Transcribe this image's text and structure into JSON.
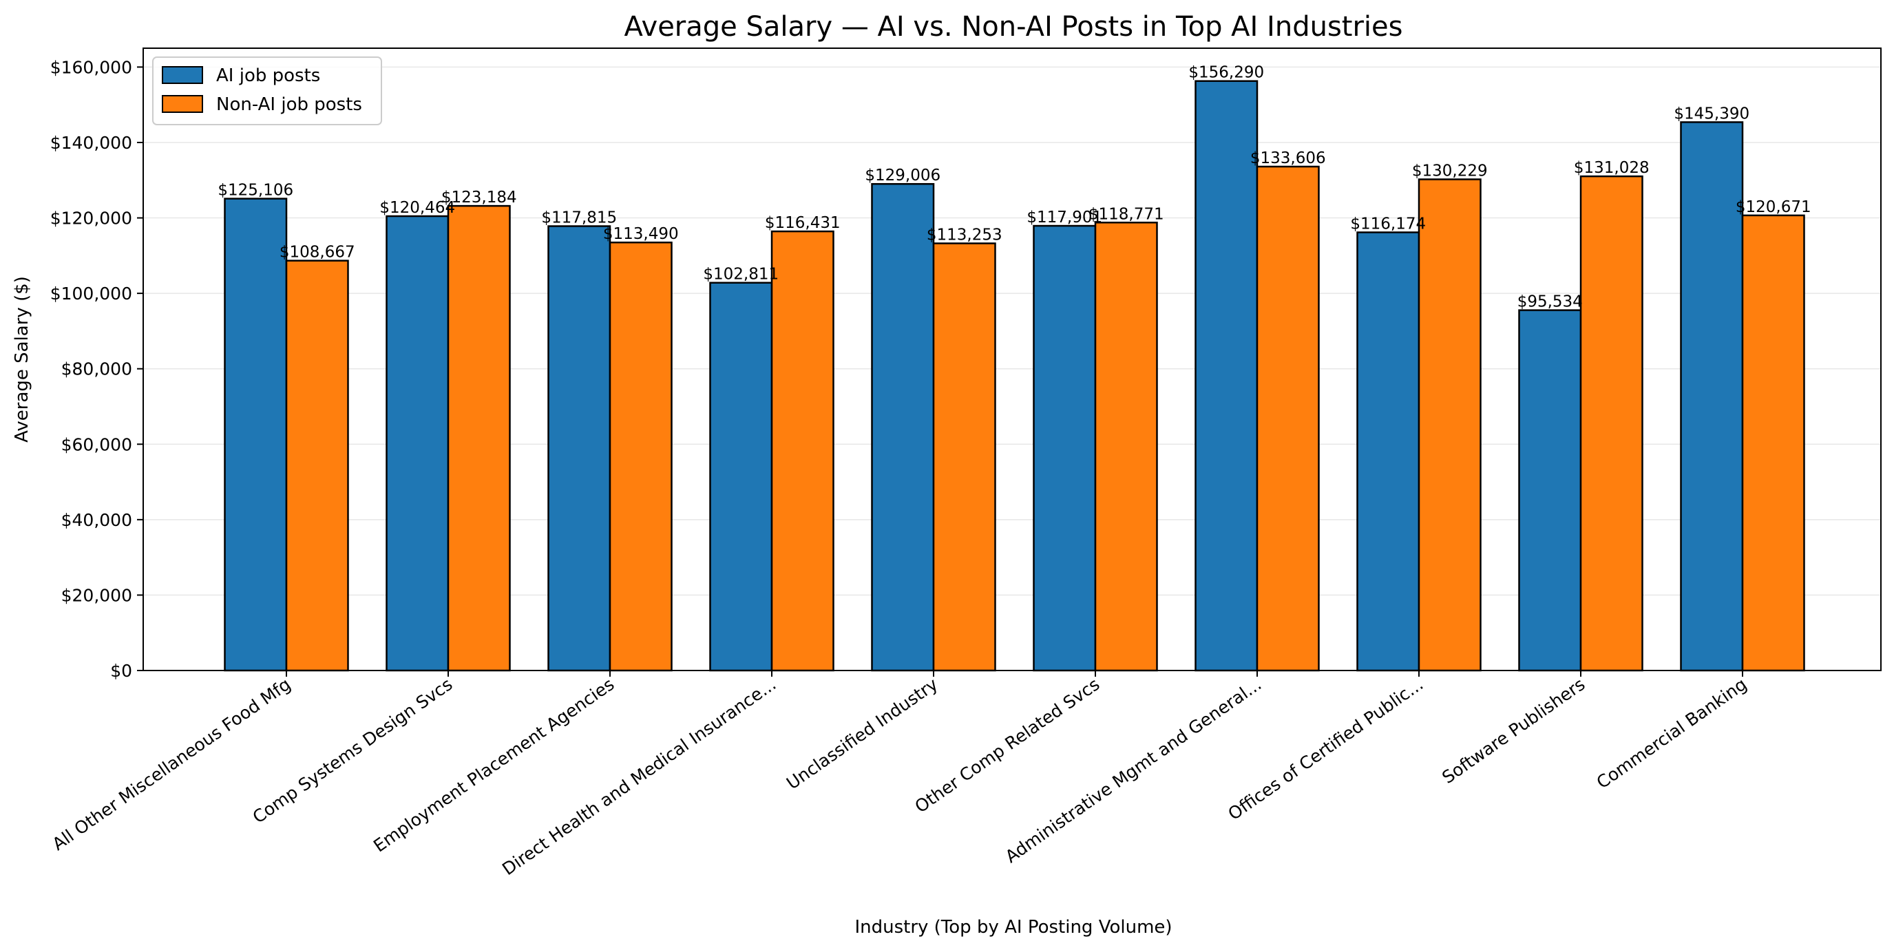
{
  "chart_data": {
    "type": "bar",
    "title": "Average Salary — AI vs. Non-AI Posts in Top AI Industries",
    "xlabel": "Industry (Top by AI Posting Volume)",
    "ylabel": "Average Salary ($)",
    "ylim": [
      0,
      165000
    ],
    "yticks": [
      0,
      20000,
      40000,
      60000,
      80000,
      100000,
      120000,
      140000,
      160000
    ],
    "ytick_labels": [
      "$0",
      "$20,000",
      "$40,000",
      "$60,000",
      "$80,000",
      "$100,000",
      "$120,000",
      "$140,000",
      "$160,000"
    ],
    "grid": "y",
    "legend_position": "top-left",
    "categories": [
      "All Other Miscellaneous Food Mfg",
      "Comp Systems Design Svcs",
      "Employment Placement Agencies",
      "Direct Health and Medical Insurance...",
      "Unclassified Industry",
      "Other Comp Related Svcs",
      "Administrative Mgmt and General...",
      "Offices of Certified Public...",
      "Software Publishers",
      "Commercial Banking"
    ],
    "series": [
      {
        "name": "AI job posts",
        "color": "#1f77b4",
        "values": [
          125106,
          120464,
          117815,
          102811,
          129006,
          117901,
          156290,
          116174,
          95534,
          145390
        ],
        "labels": [
          "$125,106",
          "$120,464",
          "$117,815",
          "$102,811",
          "$129,006",
          "$117,901",
          "$156,290",
          "$116,174",
          "$95,534",
          "$145,390"
        ]
      },
      {
        "name": "Non-AI job posts",
        "color": "#ff7f0e",
        "values": [
          108667,
          123184,
          113490,
          116431,
          113253,
          118771,
          133606,
          130229,
          131028,
          120671
        ],
        "labels": [
          "$108,667",
          "$123,184",
          "$113,490",
          "$116,431",
          "$113,253",
          "$118,771",
          "$133,606",
          "$130,229",
          "$131,028",
          "$120,671"
        ]
      }
    ]
  }
}
